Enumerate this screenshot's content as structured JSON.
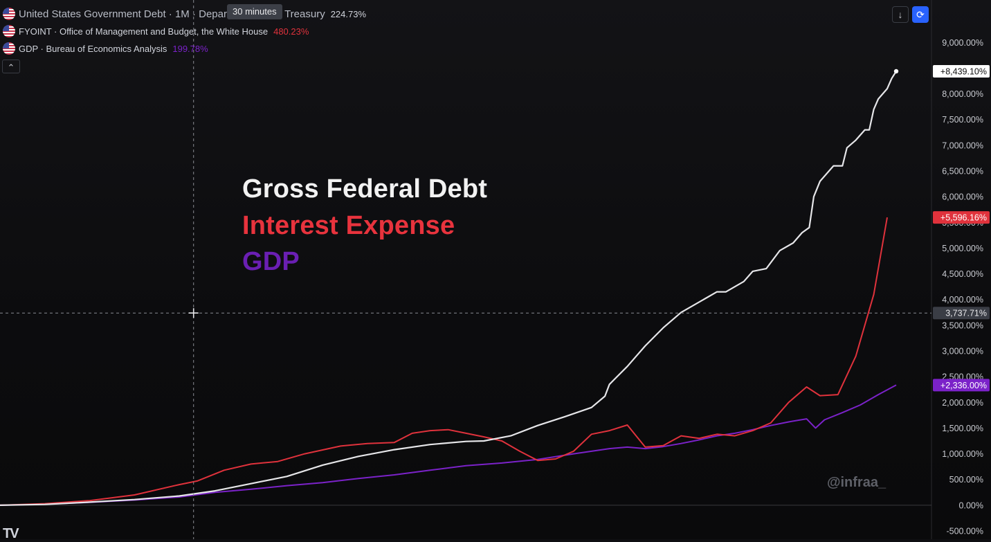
{
  "legend": [
    {
      "name": "United States Government Debt · 1M · Department of the Treasury",
      "value": "224.73%",
      "color": "#d1d4dc"
    },
    {
      "name": "FYOINT · Office of Management and Budget, the White House",
      "value": "480.23%",
      "color": "#e0323c"
    },
    {
      "name": "GDP · Bureau of Economics Analysis",
      "value": "199.78%",
      "color": "#7b22c9"
    }
  ],
  "tooltip": "30 minutes",
  "collapse_icon": "chevron-up-icon",
  "toolbar": {
    "down_icon": "arrow-down-icon",
    "sync_icon": "sync-icon"
  },
  "overlay": {
    "line1": "Gross Federal Debt",
    "line2": "Interest Expense",
    "line3": "GDP"
  },
  "watermark": "@infraa_",
  "logo": "TV",
  "crosshair_value": "3,737.71%",
  "colors": {
    "debt": "#e6e6e9",
    "interest": "#e0323c",
    "gdp": "#7b22c9",
    "debt_label": "#f2f2f2",
    "interest_label": "#e8333d",
    "gdp_label": "#6a1fb3"
  },
  "chart_data": {
    "type": "line",
    "y_unit": "%",
    "ylim": [
      -500,
      9300
    ],
    "y_ticks": [
      -500,
      0,
      500,
      1000,
      1500,
      2000,
      2500,
      3000,
      3500,
      4000,
      4500,
      5000,
      5500,
      6000,
      6500,
      7000,
      7500,
      8000,
      8500,
      9000
    ],
    "y_tick_labels": [
      "-500.00%",
      "0.00%",
      "500.00%",
      "1,000.00%",
      "1,500.00%",
      "2,000.00%",
      "2,500.00%",
      "3,000.00%",
      "3,500.00%",
      "4,000.00%",
      "4,500.00%",
      "5,000.00%",
      "5,500.00%",
      "6,000.00%",
      "6,500.00%",
      "7,000.00%",
      "7,500.00%",
      "8,000.00%",
      "8,500.00%",
      "9,000.00%"
    ],
    "xlim": [
      0,
      100
    ],
    "crosshair": {
      "x": 21.6,
      "y": 3737.71
    },
    "series": [
      {
        "key": "debt",
        "last_label": "+8,439.10%",
        "points": [
          [
            0,
            0
          ],
          [
            5,
            15
          ],
          [
            10,
            60
          ],
          [
            15,
            110
          ],
          [
            20,
            180
          ],
          [
            24,
            280
          ],
          [
            28,
            420
          ],
          [
            32,
            560
          ],
          [
            36,
            780
          ],
          [
            40,
            950
          ],
          [
            44,
            1080
          ],
          [
            48,
            1180
          ],
          [
            52,
            1240
          ],
          [
            54,
            1250
          ],
          [
            57,
            1350
          ],
          [
            60,
            1550
          ],
          [
            63,
            1720
          ],
          [
            66,
            1900
          ],
          [
            67.5,
            2120
          ],
          [
            68,
            2350
          ],
          [
            70,
            2700
          ],
          [
            72,
            3100
          ],
          [
            74,
            3450
          ],
          [
            76,
            3750
          ],
          [
            77,
            3850
          ],
          [
            79,
            4050
          ],
          [
            80,
            4150
          ],
          [
            81,
            4150
          ],
          [
            83,
            4350
          ],
          [
            84,
            4550
          ],
          [
            85.5,
            4600
          ],
          [
            87,
            4950
          ],
          [
            88.5,
            5100
          ],
          [
            89.5,
            5300
          ],
          [
            90.3,
            5400
          ],
          [
            90.8,
            6000
          ],
          [
            91.5,
            6300
          ],
          [
            93,
            6600
          ],
          [
            94,
            6600
          ],
          [
            94.5,
            6950
          ],
          [
            95.5,
            7100
          ],
          [
            96.5,
            7300
          ],
          [
            97,
            7300
          ],
          [
            97.5,
            7700
          ],
          [
            98,
            7900
          ],
          [
            99,
            8100
          ],
          [
            99.5,
            8300
          ],
          [
            100,
            8439.1
          ]
        ]
      },
      {
        "key": "interest",
        "last_label": "+5,596.16%",
        "points": [
          [
            0,
            0
          ],
          [
            5,
            30
          ],
          [
            10,
            90
          ],
          [
            15,
            200
          ],
          [
            20,
            400
          ],
          [
            22,
            470
          ],
          [
            25,
            680
          ],
          [
            28,
            800
          ],
          [
            31,
            850
          ],
          [
            34,
            1000
          ],
          [
            38,
            1150
          ],
          [
            41,
            1200
          ],
          [
            44,
            1220
          ],
          [
            46,
            1400
          ],
          [
            48,
            1450
          ],
          [
            50,
            1470
          ],
          [
            52,
            1400
          ],
          [
            54,
            1330
          ],
          [
            56,
            1250
          ],
          [
            58,
            1050
          ],
          [
            60,
            870
          ],
          [
            62,
            900
          ],
          [
            64,
            1050
          ],
          [
            66,
            1380
          ],
          [
            68,
            1450
          ],
          [
            70,
            1560
          ],
          [
            72,
            1130
          ],
          [
            74,
            1160
          ],
          [
            76,
            1350
          ],
          [
            78,
            1300
          ],
          [
            80,
            1380
          ],
          [
            82,
            1350
          ],
          [
            84,
            1450
          ],
          [
            86,
            1600
          ],
          [
            88,
            2000
          ],
          [
            90,
            2300
          ],
          [
            91.5,
            2130
          ],
          [
            93.5,
            2150
          ],
          [
            95.5,
            2900
          ],
          [
            97.5,
            4100
          ],
          [
            99,
            5596.16
          ]
        ]
      },
      {
        "key": "gdp",
        "last_label": "+2,336.00%",
        "points": [
          [
            0,
            0
          ],
          [
            5,
            20
          ],
          [
            10,
            55
          ],
          [
            15,
            100
          ],
          [
            20,
            160
          ],
          [
            24,
            250
          ],
          [
            28,
            310
          ],
          [
            32,
            380
          ],
          [
            36,
            440
          ],
          [
            40,
            520
          ],
          [
            44,
            590
          ],
          [
            48,
            680
          ],
          [
            52,
            770
          ],
          [
            56,
            820
          ],
          [
            60,
            890
          ],
          [
            64,
            1000
          ],
          [
            68,
            1100
          ],
          [
            70,
            1130
          ],
          [
            72,
            1100
          ],
          [
            74,
            1140
          ],
          [
            76,
            1200
          ],
          [
            78,
            1270
          ],
          [
            80,
            1350
          ],
          [
            82,
            1400
          ],
          [
            84,
            1470
          ],
          [
            86,
            1550
          ],
          [
            88,
            1620
          ],
          [
            90,
            1680
          ],
          [
            91,
            1500
          ],
          [
            92,
            1660
          ],
          [
            94,
            1800
          ],
          [
            96,
            1950
          ],
          [
            98,
            2150
          ],
          [
            100,
            2336.0
          ]
        ]
      }
    ]
  }
}
